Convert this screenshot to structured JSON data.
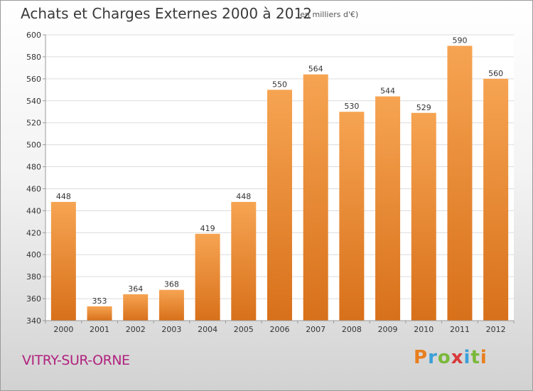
{
  "title": "Achats et Charges Externes 2000 à 2012",
  "subtitle": "(en milliers d'€)",
  "commune": "VITRY-SUR-ORNE",
  "brand": {
    "letters": [
      "P",
      "r",
      "o",
      "x",
      "i",
      "t",
      "i"
    ],
    "colors": [
      "#e87f1e",
      "#3aa0d8",
      "#7bb83a",
      "#d83a3a",
      "#3aa0d8",
      "#7bb83a",
      "#e87f1e"
    ]
  },
  "colors": {
    "bar_top": "#f6a452",
    "bar_bottom": "#d8701a",
    "grid": "#dcdcdc",
    "axis": "#9a9a9a"
  },
  "chart_data": {
    "type": "bar",
    "title": "Achats et Charges Externes 2000 à 2012",
    "subtitle": "(en milliers d'€)",
    "categories": [
      "2000",
      "2001",
      "2002",
      "2003",
      "2004",
      "2005",
      "2006",
      "2007",
      "2008",
      "2009",
      "2010",
      "2011",
      "2012"
    ],
    "values": [
      448,
      353,
      364,
      368,
      419,
      448,
      550,
      564,
      530,
      544,
      529,
      590,
      560
    ],
    "ylim": [
      340,
      600
    ],
    "yticks": [
      340,
      360,
      380,
      400,
      420,
      440,
      460,
      480,
      500,
      520,
      540,
      560,
      580,
      600
    ],
    "grid": true,
    "xlabel": "",
    "ylabel": ""
  }
}
